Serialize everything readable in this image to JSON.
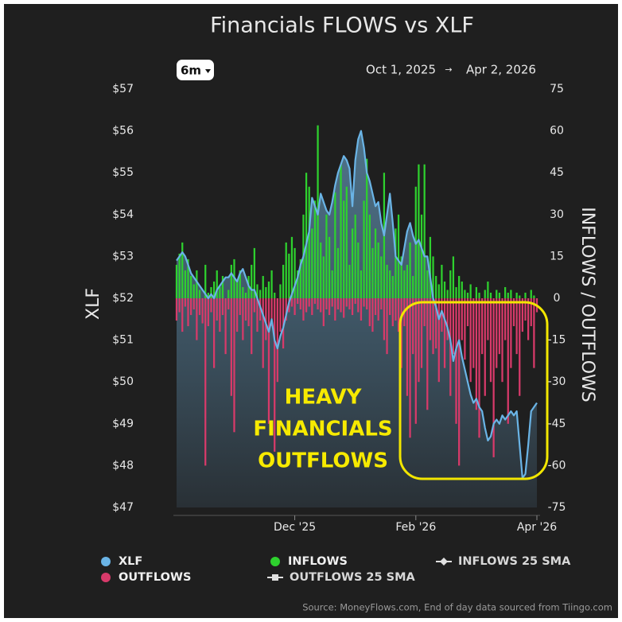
{
  "chart_data": {
    "type": "combo",
    "title": "Financials FLOWS vs XLF",
    "range_button": "6m",
    "date_range": [
      "Oct 1, 2025",
      "Apr 2, 2026"
    ],
    "date_separator": "→",
    "y_label": "XLF",
    "y2_label": "INFLOWS / OUTFLOWS",
    "annotation": [
      "HEAVY",
      "FINANCIALS",
      "OUTFLOWS"
    ],
    "source": "Source: MoneyFlows.com, End of day data sourced from Tiingo.com",
    "categories": [
      null,
      null,
      null,
      null,
      null,
      null,
      null,
      null,
      null,
      null,
      null,
      null,
      null,
      null,
      null,
      null,
      null,
      null,
      null,
      null,
      null,
      null,
      null,
      null,
      null,
      null,
      null,
      null,
      null,
      null,
      null,
      null,
      null,
      null,
      null,
      null,
      null,
      null,
      null,
      null,
      null,
      "Dec '25",
      null,
      null,
      null,
      null,
      null,
      null,
      null,
      null,
      null,
      null,
      null,
      null,
      null,
      null,
      null,
      null,
      null,
      null,
      null,
      null,
      null,
      null,
      null,
      null,
      null,
      null,
      null,
      null,
      null,
      null,
      null,
      null,
      null,
      null,
      null,
      null,
      null,
      null,
      null,
      null,
      null,
      "Feb '26",
      null,
      null,
      null,
      null,
      null,
      null,
      null,
      null,
      null,
      null,
      null,
      null,
      null,
      null,
      null,
      null,
      null,
      null,
      null,
      null,
      null,
      null,
      null,
      null,
      null,
      null,
      null,
      null,
      null,
      null,
      null,
      null,
      null,
      null,
      null,
      null,
      null,
      null,
      null,
      null,
      null,
      "Apr '26"
    ],
    "ylim": [
      47,
      57
    ],
    "yticks": [
      {
        "value": 57,
        "label": "$57"
      },
      {
        "value": 56,
        "label": "$56"
      },
      {
        "value": 55,
        "label": "$55"
      },
      {
        "value": 54,
        "label": "$54"
      },
      {
        "value": 53,
        "label": "$53"
      },
      {
        "value": 52,
        "label": "$52"
      },
      {
        "value": 51,
        "label": "$51"
      },
      {
        "value": 50,
        "label": "$50"
      },
      {
        "value": 49,
        "label": "$49"
      },
      {
        "value": 48,
        "label": "$48"
      },
      {
        "value": 47,
        "label": "$47"
      }
    ],
    "y2lim": [
      -75,
      75
    ],
    "y2ticks": [
      75,
      60,
      45,
      30,
      15,
      0,
      -15,
      -30,
      -45,
      -60,
      -75
    ],
    "series": [
      {
        "name": "XLF",
        "type": "line",
        "color": "#6ab4e6",
        "values": [
          52.9,
          53.0,
          53.1,
          53.0,
          52.8,
          52.6,
          52.5,
          52.4,
          52.3,
          52.2,
          52.1,
          52.0,
          52.1,
          52.0,
          52.2,
          52.3,
          52.4,
          52.5,
          52.5,
          52.6,
          52.5,
          52.4,
          52.6,
          52.7,
          52.5,
          52.3,
          52.2,
          52.2,
          52.0,
          51.8,
          51.6,
          51.4,
          51.2,
          51.5,
          51.0,
          50.8,
          51.1,
          51.3,
          51.6,
          51.9,
          52.1,
          52.3,
          52.5,
          52.8,
          53.0,
          53.3,
          53.6,
          54.4,
          54.2,
          54.0,
          54.5,
          54.3,
          54.1,
          54.0,
          54.3,
          54.7,
          55.0,
          55.2,
          55.4,
          55.3,
          55.1,
          54.2,
          55.3,
          55.8,
          56.0,
          55.6,
          55.0,
          54.8,
          54.5,
          54.2,
          54.3,
          53.8,
          53.5,
          54.0,
          54.5,
          53.8,
          53.0,
          52.9,
          52.8,
          53.2,
          53.6,
          53.8,
          53.5,
          53.3,
          53.4,
          53.2,
          53.0,
          53.0,
          52.5,
          52.0,
          51.8,
          51.5,
          51.7,
          51.5,
          51.3,
          51.0,
          50.5,
          50.8,
          51.0,
          50.6,
          50.3,
          50.0,
          49.7,
          49.5,
          49.6,
          49.4,
          49.3,
          48.9,
          48.6,
          48.7,
          49.0,
          49.1,
          49.0,
          49.2,
          49.1,
          49.2,
          49.3,
          49.2,
          49.3,
          48.5,
          47.7,
          47.8,
          48.5,
          49.3,
          49.4,
          49.5
        ]
      },
      {
        "name": "INFLOWS",
        "type": "bar",
        "axis": "y2",
        "color": "#2ed12e",
        "values": [
          12,
          16,
          20,
          10,
          14,
          8,
          5,
          10,
          3,
          0,
          12,
          2,
          4,
          6,
          10,
          4,
          8,
          0,
          3,
          12,
          14,
          6,
          10,
          4,
          2,
          8,
          12,
          18,
          5,
          3,
          8,
          4,
          6,
          10,
          2,
          0,
          5,
          12,
          20,
          16,
          22,
          18,
          10,
          14,
          30,
          45,
          40,
          25,
          35,
          62,
          20,
          15,
          30,
          22,
          10,
          38,
          18,
          48,
          35,
          40,
          12,
          25,
          30,
          20,
          10,
          35,
          50,
          30,
          18,
          25,
          20,
          15,
          45,
          12,
          10,
          8,
          25,
          30,
          15,
          10,
          12,
          20,
          8,
          40,
          48,
          30,
          48,
          10,
          22,
          15,
          8,
          5,
          12,
          6,
          3,
          10,
          15,
          4,
          8,
          6,
          3,
          2,
          5,
          0,
          4,
          2,
          0,
          3,
          6,
          2,
          0,
          3,
          2,
          0,
          4,
          2,
          3,
          0,
          2,
          1,
          0,
          2,
          0,
          3,
          1,
          0
        ]
      },
      {
        "name": "OUTFLOWS",
        "type": "bar",
        "axis": "y2",
        "color": "#d83a6a",
        "values": [
          -8,
          -5,
          -12,
          -3,
          -10,
          -6,
          -4,
          -15,
          -6,
          -9,
          -60,
          -10,
          -5,
          -25,
          -8,
          -12,
          -6,
          -20,
          -4,
          -35,
          -48,
          -12,
          -6,
          -15,
          -8,
          -10,
          -20,
          -5,
          -12,
          -8,
          -25,
          -15,
          -45,
          -10,
          -55,
          -30,
          -12,
          -18,
          -8,
          -5,
          -3,
          -6,
          -2,
          -4,
          -8,
          -5,
          -3,
          -6,
          -2,
          -4,
          -5,
          -10,
          -4,
          -6,
          -3,
          -8,
          -4,
          -5,
          -7,
          -3,
          -4,
          -6,
          -2,
          -5,
          -8,
          -3,
          -4,
          -10,
          -12,
          -6,
          -8,
          -4,
          -15,
          -20,
          -6,
          -10,
          -8,
          -12,
          -25,
          -10,
          -35,
          -50,
          -20,
          -45,
          -30,
          -25,
          -10,
          -40,
          -15,
          -20,
          -18,
          -30,
          -12,
          -25,
          -15,
          -35,
          -20,
          -45,
          -60,
          -15,
          -22,
          -10,
          -30,
          -25,
          -40,
          -50,
          -20,
          -35,
          -15,
          -30,
          -57,
          -25,
          -20,
          -30,
          -15,
          -45,
          -25,
          -10,
          -20,
          -35,
          -12,
          -8,
          -15,
          -10,
          -25,
          -5
        ]
      }
    ],
    "legend_extra": [
      "INFLOWS 25 SMA",
      "OUTFLOWS 25 SMA"
    ]
  }
}
